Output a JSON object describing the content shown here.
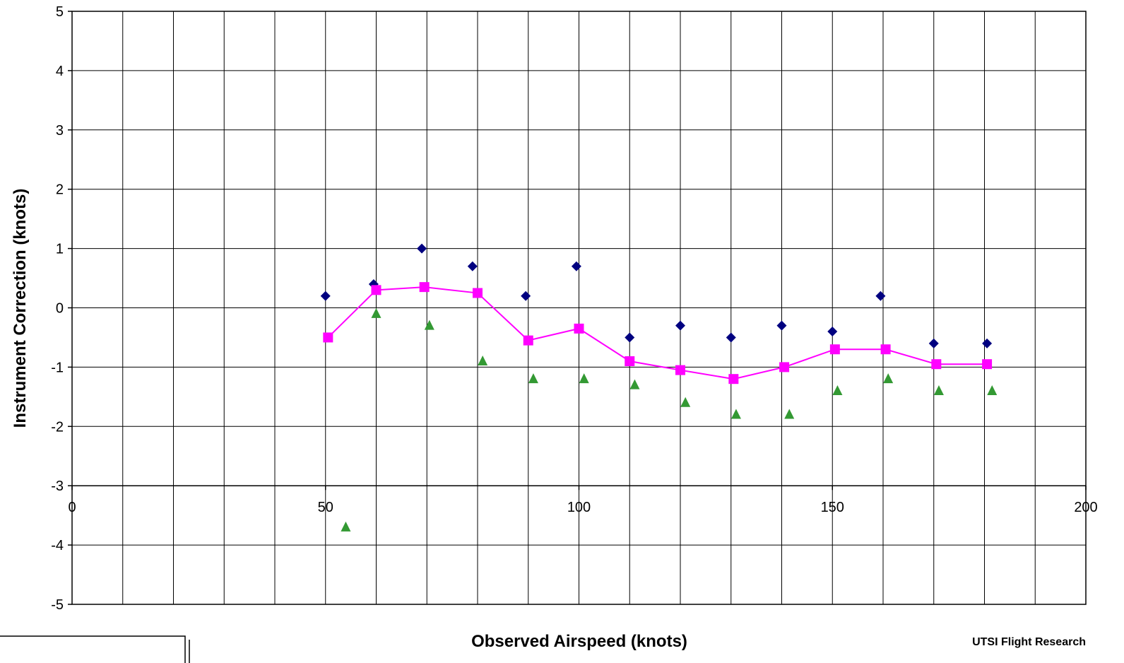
{
  "chart_data": {
    "type": "scatter",
    "xlabel": "Observed Airspeed (knots)",
    "ylabel": "Instrument Correction (knots)",
    "xlim": [
      0,
      200
    ],
    "ylim": [
      -5,
      5
    ],
    "x_ticks": [
      0,
      50,
      100,
      150,
      200
    ],
    "y_ticks": [
      5,
      4,
      3,
      2,
      1,
      0,
      -1,
      -2,
      -3,
      -4,
      -5
    ],
    "x_grid_step": 10,
    "y_grid_step": 1,
    "grid": true,
    "credit": "UTSI Flight Research",
    "series": [
      {
        "marker": "diamond",
        "color": "#000080",
        "line": false,
        "points": [
          {
            "x": 50,
            "y": 0.2
          },
          {
            "x": 59.5,
            "y": 0.4
          },
          {
            "x": 69,
            "y": 1.0
          },
          {
            "x": 79,
            "y": 0.7
          },
          {
            "x": 89.5,
            "y": 0.2
          },
          {
            "x": 99.5,
            "y": 0.7
          },
          {
            "x": 110,
            "y": -0.5
          },
          {
            "x": 120,
            "y": -0.3
          },
          {
            "x": 130,
            "y": -0.5
          },
          {
            "x": 140,
            "y": -0.3
          },
          {
            "x": 150,
            "y": -0.4
          },
          {
            "x": 159.5,
            "y": 0.2
          },
          {
            "x": 170,
            "y": -0.6
          },
          {
            "x": 180.5,
            "y": -0.6
          }
        ]
      },
      {
        "marker": "square",
        "color": "#ff00ff",
        "line": true,
        "points": [
          {
            "x": 50.5,
            "y": -0.5
          },
          {
            "x": 60,
            "y": 0.3
          },
          {
            "x": 69.5,
            "y": 0.35
          },
          {
            "x": 80,
            "y": 0.25
          },
          {
            "x": 90,
            "y": -0.55
          },
          {
            "x": 100,
            "y": -0.35
          },
          {
            "x": 110,
            "y": -0.9
          },
          {
            "x": 120,
            "y": -1.05
          },
          {
            "x": 130.5,
            "y": -1.2
          },
          {
            "x": 140.5,
            "y": -1.0
          },
          {
            "x": 150.5,
            "y": -0.7
          },
          {
            "x": 160.5,
            "y": -0.7
          },
          {
            "x": 170.5,
            "y": -0.95
          },
          {
            "x": 180.5,
            "y": -0.95
          }
        ]
      },
      {
        "marker": "triangle",
        "color": "#339933",
        "line": false,
        "points": [
          {
            "x": 54,
            "y": -3.7
          },
          {
            "x": 60,
            "y": -0.1
          },
          {
            "x": 70.5,
            "y": -0.3
          },
          {
            "x": 81,
            "y": -0.9
          },
          {
            "x": 91,
            "y": -1.2
          },
          {
            "x": 101,
            "y": -1.2
          },
          {
            "x": 111,
            "y": -1.3
          },
          {
            "x": 121,
            "y": -1.6
          },
          {
            "x": 131,
            "y": -1.8
          },
          {
            "x": 141.5,
            "y": -1.8
          },
          {
            "x": 151,
            "y": -1.4
          },
          {
            "x": 161,
            "y": -1.2
          },
          {
            "x": 171,
            "y": -1.4
          },
          {
            "x": 181.5,
            "y": -1.4
          }
        ]
      }
    ]
  }
}
